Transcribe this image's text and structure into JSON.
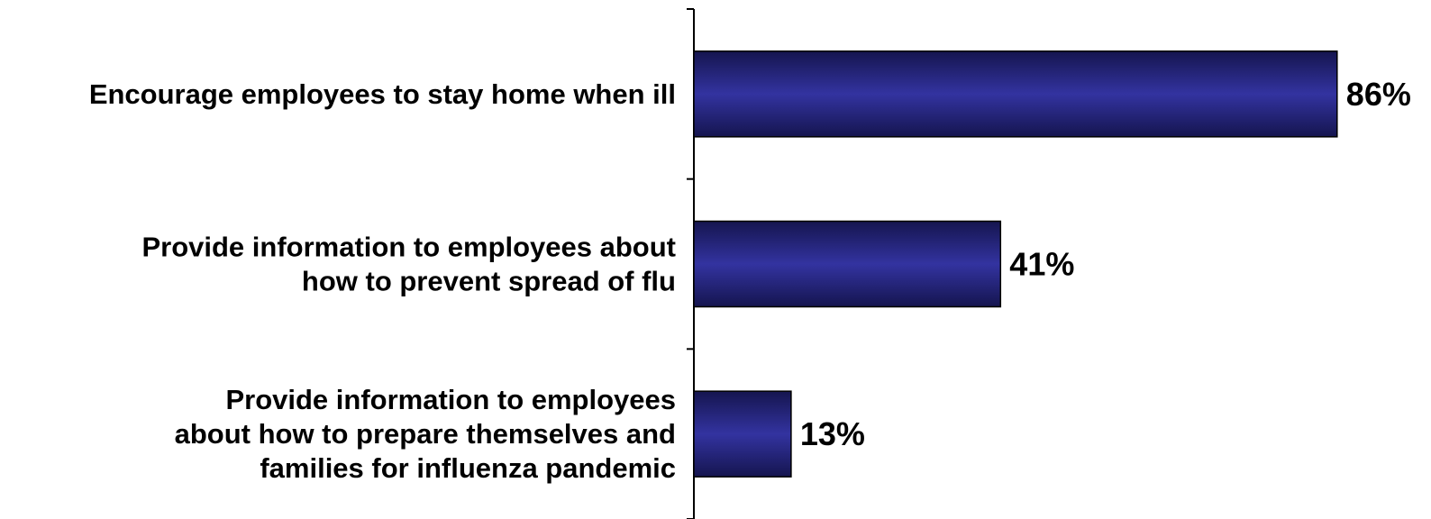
{
  "chart_data": {
    "type": "bar",
    "orientation": "horizontal",
    "categories": [
      [
        "Encourage employees to stay home when ill"
      ],
      [
        "Provide information to employees about",
        "how to prevent spread of flu"
      ],
      [
        "Provide information to employees",
        "about how to prepare themselves and",
        "families for influenza pandemic"
      ]
    ],
    "values": [
      86,
      41,
      13
    ],
    "value_labels": [
      "86%",
      "41%",
      "13%"
    ],
    "xlim": [
      0,
      100
    ],
    "grid": false,
    "legend": "none",
    "bar_color": "#2e2e92",
    "bar_edge_color": "#000000"
  }
}
